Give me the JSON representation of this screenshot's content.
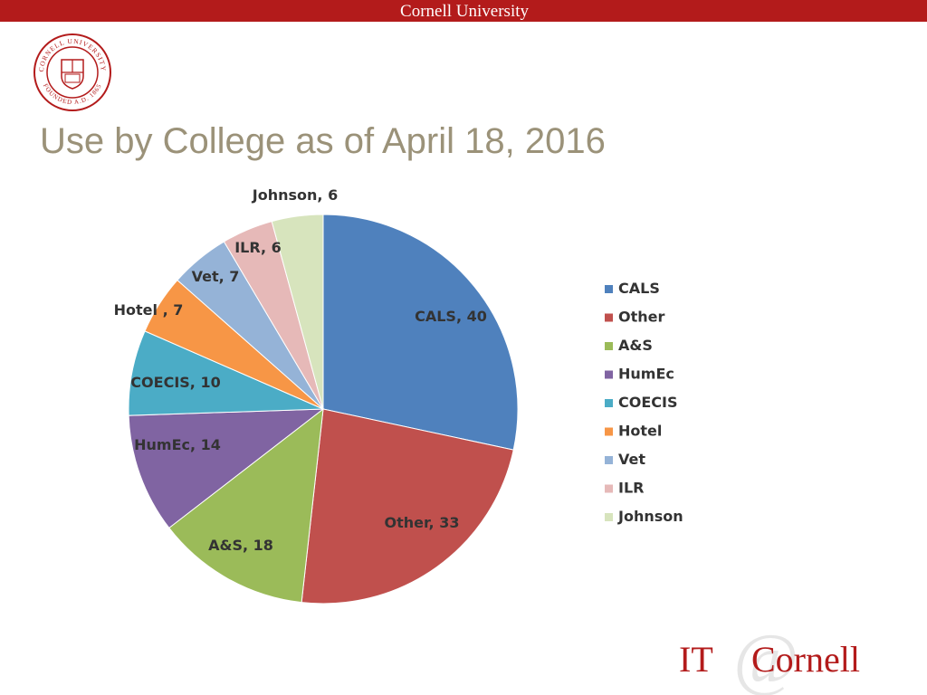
{
  "header": {
    "university": "Cornell University"
  },
  "seal": {
    "ring_top": "CORNELL UNIVERSITY",
    "ring_bottom": "FOUNDED A.D. 1865"
  },
  "title": "Use by College as of April 18, 2016",
  "chart_data": {
    "type": "pie",
    "categories": [
      "CALS",
      "Other",
      "A&S",
      "HumEc",
      "COECIS",
      "Hotel",
      "Vet",
      "ILR",
      "Johnson"
    ],
    "values": [
      40,
      33,
      18,
      14,
      10,
      7,
      7,
      6,
      6
    ],
    "slice_labels": [
      "CALS, 40",
      "Other, 33",
      "A&S, 18",
      "HumEc, 14",
      "COECIS, 10",
      "Hotel , 7",
      "Vet, 7",
      "ILR, 6",
      "Johnson, 6"
    ],
    "colors": [
      "#4f81bd",
      "#c0504d",
      "#9bbb59",
      "#8064a2",
      "#4bacc6",
      "#f79646",
      "#95b3d7",
      "#e6b9b8",
      "#d7e4bd"
    ],
    "legend": [
      "CALS",
      "Other",
      "A&S",
      "HumEc",
      "COECIS",
      "Hotel",
      "Vet",
      "ILR",
      "Johnson"
    ],
    "legend_position": "right",
    "start": "top, clockwise"
  },
  "footer_logo": {
    "it": "IT",
    "at": "@",
    "cornell": "Cornell"
  },
  "colors": {
    "cornell_red": "#b31b1b",
    "title_gray": "#9b9279"
  }
}
